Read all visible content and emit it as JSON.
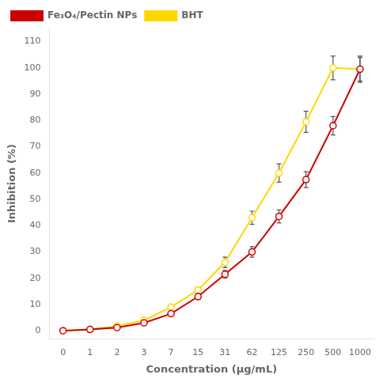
{
  "chart_data": {
    "type": "line",
    "categories": [
      "0",
      "1",
      "2",
      "3",
      "7",
      "15",
      "31",
      "62",
      "125",
      "250",
      "500",
      "1000"
    ],
    "series": [
      {
        "name": "Fe₃O₄/Pectin NPs",
        "color": "#cc0000",
        "marker": "circle",
        "values": [
          0,
          0.5,
          1.2,
          3.0,
          6.5,
          13.0,
          21.5,
          30.0,
          43.5,
          57.5,
          78.0,
          99.5
        ],
        "errors": [
          0.0,
          0.3,
          0.4,
          0.5,
          0.5,
          1.0,
          1.5,
          2.0,
          2.5,
          3.0,
          3.5,
          4.5
        ]
      },
      {
        "name": "BHT",
        "color": "#FFD700",
        "marker": "circle",
        "values": [
          0,
          0.5,
          1.8,
          4.0,
          9.0,
          15.5,
          26.0,
          43.0,
          60.0,
          79.5,
          100.0,
          99.5
        ],
        "errors": [
          0.0,
          0.3,
          0.4,
          0.5,
          0.5,
          1.0,
          2.0,
          2.5,
          3.5,
          4.0,
          4.5,
          5.0
        ]
      }
    ],
    "xlabel": "Concentration (µg/mL)",
    "ylabel": "Inhibition (%)",
    "ylim": [
      -3,
      115
    ],
    "yticks": [
      0,
      10,
      20,
      30,
      40,
      50,
      60,
      70,
      80,
      90,
      100,
      110
    ],
    "grid": false,
    "legend": "upper left"
  }
}
